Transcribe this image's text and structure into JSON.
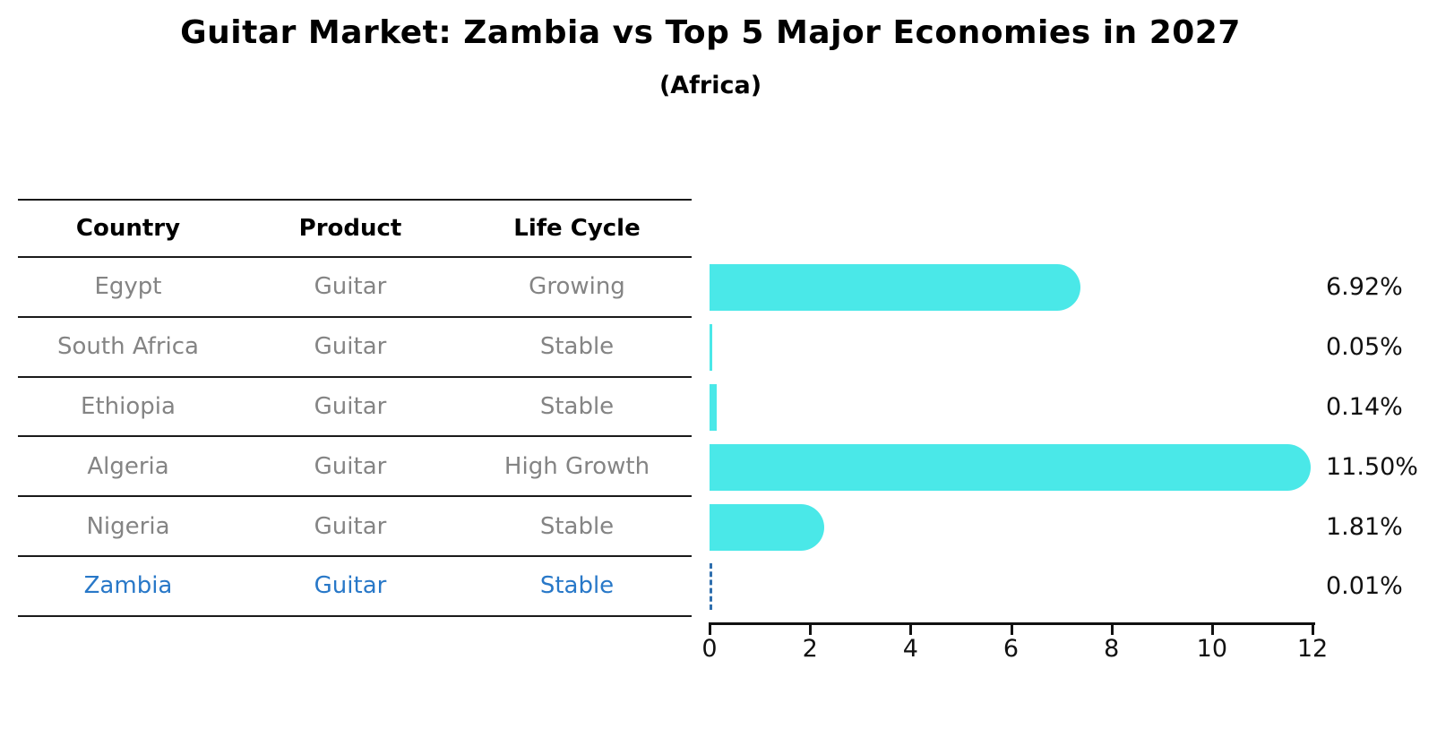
{
  "title": "Guitar Market: Zambia vs Top 5 Major Economies in 2027",
  "subtitle": "(Africa)",
  "table": {
    "headers": [
      "Country",
      "Product",
      "Life Cycle"
    ],
    "rows": [
      {
        "country": "Egypt",
        "product": "Guitar",
        "life_cycle": "Growing",
        "highlight": false
      },
      {
        "country": "South Africa",
        "product": "Guitar",
        "life_cycle": "Stable",
        "highlight": false
      },
      {
        "country": "Ethiopia",
        "product": "Guitar",
        "life_cycle": "Stable",
        "highlight": false
      },
      {
        "country": "Algeria",
        "product": "Guitar",
        "life_cycle": "High Growth",
        "highlight": false
      },
      {
        "country": "Nigeria",
        "product": "Guitar",
        "life_cycle": "Stable",
        "highlight": false
      },
      {
        "country": "Zambia",
        "product": "Guitar",
        "life_cycle": "Stable",
        "highlight": true
      }
    ]
  },
  "chart_data": {
    "type": "bar",
    "orientation": "horizontal",
    "categories": [
      "Egypt",
      "South Africa",
      "Ethiopia",
      "Algeria",
      "Nigeria",
      "Zambia"
    ],
    "values": [
      6.92,
      0.05,
      0.14,
      11.5,
      1.81,
      0.01
    ],
    "value_labels": [
      "6.92%",
      "0.05%",
      "0.14%",
      "11.50%",
      "1.81%",
      "0.01%"
    ],
    "xlim": [
      0,
      12
    ],
    "xticks": [
      0,
      2,
      4,
      6,
      8,
      10,
      12
    ],
    "grid": false,
    "legend": false,
    "bar_color": "#4AE8E8",
    "highlight_index": 5,
    "highlight_style": "dashed-blue-outline",
    "highlight_text_color": "#2878c8",
    "highlight_dash_color": "#2f6fae"
  }
}
